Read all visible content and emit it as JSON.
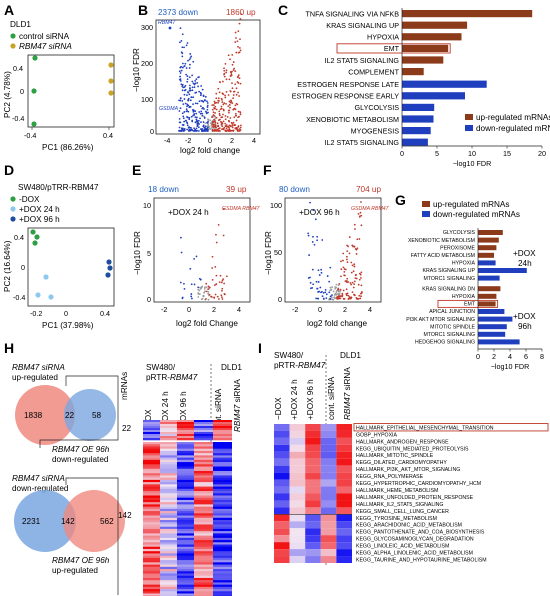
{
  "panel_letters": [
    "A",
    "B",
    "C",
    "D",
    "E",
    "F",
    "G",
    "H",
    "I"
  ],
  "colors": {
    "up": "#c0392b",
    "down": "#1f3fbf",
    "gray": "#9a9a9a",
    "emt_box": "#c0392b",
    "brown": "#8b3a1a"
  },
  "panelA": {
    "cell": "DLD1",
    "legend": [
      {
        "label": "control siRNA",
        "color": "#2ea043"
      },
      {
        "label": "RBM47 siRNA",
        "color": "#c9a227"
      }
    ],
    "xlabel": "PC1 (86.26%)",
    "ylabel": "PC2 (4.78%)",
    "xticks": [
      "-0.4",
      "0.4"
    ],
    "yticks": [
      "0.4",
      "0",
      "-0.4"
    ]
  },
  "panelB": {
    "down_label": "2373 down",
    "up_label": "1860 up",
    "gene_top": "RBM47",
    "gene_low": "GSDMA",
    "xlabel": "log2 fold change",
    "ylabel": "−log10 FDR",
    "xticks": [
      "-4",
      "-2",
      "0",
      "2",
      "4"
    ],
    "yticks": [
      "0",
      "100",
      "200",
      "300"
    ]
  },
  "panelC": {
    "xlabel": "−log10 FDR",
    "xticks": [
      "0",
      "5",
      "10",
      "15",
      "20"
    ],
    "legend": [
      {
        "label": "up-regulated mRNAs",
        "color": "#8b3a1a"
      },
      {
        "label": "down-regulated mRNAs",
        "color": "#1f3fbf"
      }
    ]
  },
  "panelD": {
    "cell": "SW480/pTRR-RBM47",
    "legend": [
      {
        "label": "-DOX",
        "color": "#2ea043"
      },
      {
        "label": "+DOX 24 h",
        "color": "#8ec8f0"
      },
      {
        "label": "+DOX 96 h",
        "color": "#1f4e9c"
      }
    ],
    "xlabel": "PC1 (37.98%)",
    "ylabel": "PC2 (16.64%)",
    "xticks": [
      "-0.2",
      "0",
      "0.4"
    ],
    "yticks": [
      "0.4",
      "0",
      "-0.4"
    ]
  },
  "panelE": {
    "down_label": "18 down",
    "up_label": "39 up",
    "condition": "+DOX 24 h",
    "genes": "GSDMA RBM47",
    "xlabel": "log2 fold Change",
    "ylabel": "−log10 FDR",
    "xticks": [
      "-2",
      "0",
      "2",
      "4"
    ],
    "yticks": [
      "0",
      "5",
      "10"
    ]
  },
  "panelF": {
    "down_label": "80 down",
    "up_label": "704 up",
    "condition": "+DOX 96 h",
    "genes": "GSDMA RBM47",
    "xlabel": "log2 fold change",
    "ylabel": "−log10 FDR",
    "xticks": [
      "-2",
      "0",
      "2",
      "4"
    ],
    "yticks": [
      "0",
      "50",
      "100"
    ]
  },
  "panelG": {
    "legend": [
      {
        "label": "up-regulated mRNAs",
        "color": "#8b3a1a"
      },
      {
        "label": "down-regulated mRNAs",
        "color": "#1f3fbf"
      }
    ],
    "group1": "+DOX\n24h",
    "group2": "+DOX\n96h",
    "xlabel": "−log10 FDR",
    "xticks": [
      "0",
      "2",
      "4",
      "6",
      "8"
    ]
  },
  "panelH": {
    "venn1": {
      "title1": "RBM47 siRNA",
      "title2": "up-regulated",
      "left": "1838",
      "mid": "22",
      "right": "58",
      "bottom1": "RBM47 OE 96h",
      "bottom2": "down-regulated"
    },
    "venn2": {
      "title1": "RBM47 siRNA",
      "title2": "down-regulated",
      "left": "2231",
      "mid": "142",
      "right": "562",
      "bottom1": "RBM47 OE 96h",
      "bottom2": "up-regulated"
    },
    "mrnas_header": "mRNAs",
    "count1": "22",
    "count2": "142",
    "group1_title": "SW480/\npRTR-RBM47",
    "group2_title": "DLD1",
    "columns": [
      "−DOX",
      "+DOX 24 h",
      "+DOX 96 h",
      "cont. siRNA",
      "RBM47 siRNA"
    ]
  },
  "panelI": {
    "group1_title": "SW480/\npRTR-RBM47",
    "group2_title": "DLD1",
    "columns": [
      "−DOX",
      "+DOX 24 h",
      "+DOX 96 h",
      "cont. siRNA",
      "RBM47 siRNA"
    ],
    "rows": [
      "HALLMARK_EPITHELIAL_MESENCHYMAL_TRANSITION",
      "GOBP_HYPOXIA",
      "HALLMARK_ANDROGEN_RESPONSE",
      "KEGG_UBIQUITIN_MEDIATED_PROTEOLYSIS",
      "HALLMARK_MITOTIC_SPINDLE",
      "KEGG_DILATED_CARDIOMYOPATHY",
      "HALLMARK_PI3K_AKT_MTOR_SIGNALING",
      "KEGG_RNA_POLYMERASE",
      "KEGG_HYPERTROPHIC_CARDIOMYOPATHY_HCM",
      "HALLMARK_HEME_METABOLISM",
      "HALLMARK_UNFOLDED_PROTEIN_RESPONSE",
      "HALLMARK_IL2_STAT5_SIGNALING",
      "KEGG_SMALL_CELL_LUNG_CANCER",
      "KEGG_TYROSINE_METABOLISM",
      "KEGG_ARACHIDONIC_ACID_METABOLISM",
      "KEGG_PANTOTHENATE_AND_COA_BIOSYNTHESIS",
      "KEGG_GLYCOSAMINOGLYCAN_DEGRADATION",
      "KEGG_LINOLEIC_ACID_METABOLISM",
      "KEGG_ALPHA_LINOLENIC_ACID_METABOLISM",
      "KEGG_TAURINE_AND_HYPOTAURINE_METABOLISM"
    ]
  },
  "chart_data": [
    {
      "id": "C",
      "type": "bar",
      "xlabel": "−log10 FDR",
      "xlim": [
        0,
        20
      ],
      "categories": [
        "TNFA SIGNALING VIA NFKB",
        "KRAS SIGNALING UP",
        "HYPOXIA",
        "EMT",
        "IL2 STAT5 SIGNALING",
        "COMPLEMENT",
        "ESTROGEN RESPONSE LATE",
        "ESTROGEN RESPONSE EARLY",
        "GLYCOLYSIS",
        "XENOBIOTIC METABOLISM",
        "MYOGENESIS",
        "IL2 STAT5 SIGNALING"
      ],
      "values": [
        18.6,
        9.3,
        8.5,
        6.6,
        5.9,
        3.1,
        12.1,
        9.0,
        4.6,
        4.5,
        4.1,
        3.7
      ],
      "direction": [
        "up",
        "up",
        "up",
        "up",
        "up",
        "up",
        "down",
        "down",
        "down",
        "down",
        "down",
        "down"
      ],
      "highlight": "EMT"
    },
    {
      "id": "G",
      "type": "bar",
      "xlabel": "−log10 FDR",
      "xlim": [
        0,
        8
      ],
      "categories": [
        "GLYCOLYSIS",
        "XENOBIOTIC METABOLISM",
        "PEROXISOME",
        "FATTY ACID METABOLISM",
        "HYPOXIA",
        "KRAS SIGNALING UP",
        "MTORC1 SIGNALING",
        "KRAS SIGNALING DN",
        "HYPOXIA",
        "EMT",
        "APICAL JUNCTION",
        "PI3K AKT MTOR SIGNALING",
        "MITOTIC SPINDLE",
        "MTORC1 SIGNALING",
        "HEDGEHOG SIGNALING"
      ],
      "values": [
        3.1,
        2.6,
        2.3,
        2.0,
        2.2,
        6.1,
        2.7,
        2.8,
        2.3,
        2.2,
        3.3,
        4.3,
        3.6,
        3.4,
        5.2
      ],
      "direction": [
        "up",
        "up",
        "up",
        "up",
        "down",
        "down",
        "down",
        "up",
        "up",
        "up",
        "down",
        "down",
        "down",
        "down",
        "down"
      ],
      "highlight": "EMT"
    }
  ]
}
